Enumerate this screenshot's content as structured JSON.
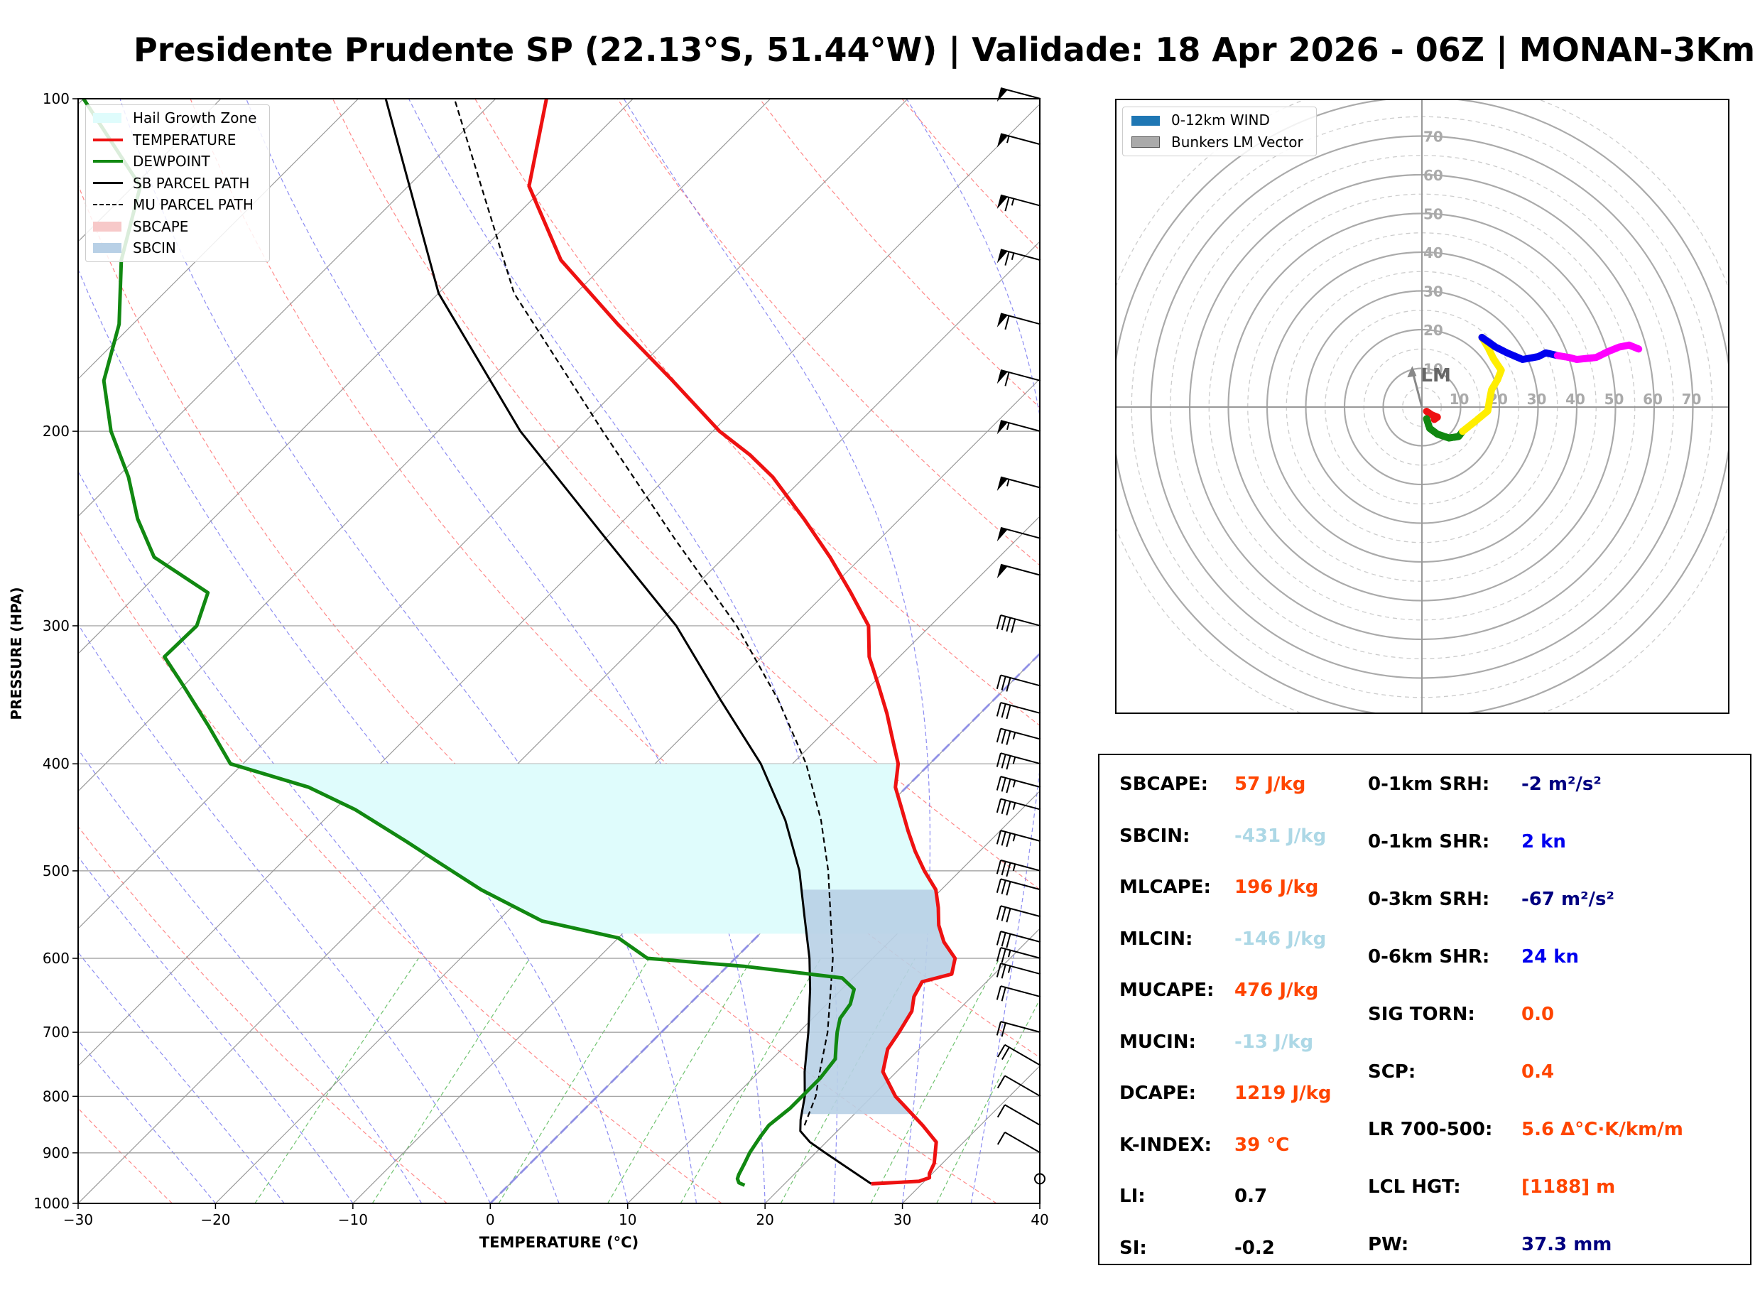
{
  "header": {
    "title": "Presidente Prudente SP (22.13°S, 51.44°W) | Validade: 18 Apr 2026 - 06Z | MONAN-3Km"
  },
  "colors": {
    "temperature": "#ee1111",
    "dewpoint": "#118811",
    "parcel": "#000000",
    "hail": "#dffcfc",
    "sbcin": "#b8d0e6",
    "sbcape": "#f7c9c9",
    "orange": "#ff4500",
    "lightblue": "#add8e6",
    "navy": "#000080",
    "blue": "#0000ee",
    "black": "#000000"
  },
  "chart_data": [
    {
      "type": "line",
      "name": "skew-t",
      "xlabel": "TEMPERATURE (°C)",
      "ylabel": "PRESSURE (HPA)",
      "xlim": [
        -30,
        40
      ],
      "ylim": [
        1000,
        100
      ],
      "skew_deg_per_decade": 45,
      "x_ticks": [
        -30,
        -20,
        -10,
        0,
        10,
        20,
        30,
        40
      ],
      "x_tick_labels": [
        "−30",
        "−20",
        "−10",
        "0",
        "10",
        "20",
        "30",
        "40"
      ],
      "p_ticks": [
        1000,
        900,
        800,
        700,
        600,
        500,
        400,
        300,
        200,
        100
      ],
      "legend": [
        {
          "label": "Hail Growth Zone",
          "kind": "patch",
          "color": "#dffcfc"
        },
        {
          "label": "TEMPERATURE",
          "kind": "line",
          "color": "#ee1111",
          "width": 4
        },
        {
          "label": "DEWPOINT",
          "kind": "line",
          "color": "#118811",
          "width": 4
        },
        {
          "label": "SB PARCEL PATH",
          "kind": "line",
          "color": "#000000",
          "width": 3
        },
        {
          "label": "MU PARCEL PATH",
          "kind": "dash",
          "color": "#000000",
          "width": 2
        },
        {
          "label": "SBCAPE",
          "kind": "patch",
          "color": "#f7c9c9"
        },
        {
          "label": "SBCIN",
          "kind": "patch",
          "color": "#b8d0e6"
        }
      ],
      "series": [
        {
          "name": "TEMPERATURE",
          "points": [
            [
              960,
              26.3
            ],
            [
              955,
              29.6
            ],
            [
              948,
              30.1
            ],
            [
              940,
              29.8
            ],
            [
              920,
              29.4
            ],
            [
              880,
              28.0
            ],
            [
              850,
              25.8
            ],
            [
              800,
              21.7
            ],
            [
              760,
              19.0
            ],
            [
              725,
              17.7
            ],
            [
              700,
              17.3
            ],
            [
              670,
              16.7
            ],
            [
              650,
              15.8
            ],
            [
              630,
              15.3
            ],
            [
              620,
              16.9
            ],
            [
              600,
              16.0
            ],
            [
              580,
              14.0
            ],
            [
              560,
              12.4
            ],
            [
              540,
              11.1
            ],
            [
              520,
              9.6
            ],
            [
              500,
              7.4
            ],
            [
              480,
              5.3
            ],
            [
              460,
              3.3
            ],
            [
              440,
              1.3
            ],
            [
              420,
              -0.8
            ],
            [
              400,
              -2.3
            ],
            [
              380,
              -4.5
            ],
            [
              360,
              -6.8
            ],
            [
              340,
              -9.4
            ],
            [
              320,
              -12.2
            ],
            [
              300,
              -14.5
            ],
            [
              280,
              -18.2
            ],
            [
              260,
              -22.3
            ],
            [
              240,
              -27.0
            ],
            [
              220,
              -32.3
            ],
            [
              210,
              -35.6
            ],
            [
              200,
              -39.5
            ],
            [
              180,
              -46.6
            ],
            [
              160,
              -54.7
            ],
            [
              140,
              -63.5
            ],
            [
              120,
              -71.2
            ],
            [
              100,
              -76.3
            ]
          ]
        },
        {
          "name": "DEWPOINT",
          "points": [
            [
              963,
              17.2
            ],
            [
              958,
              16.6
            ],
            [
              950,
              16.2
            ],
            [
              942,
              16.0
            ],
            [
              920,
              15.6
            ],
            [
              900,
              15.2
            ],
            [
              870,
              14.8
            ],
            [
              850,
              14.6
            ],
            [
              820,
              14.9
            ],
            [
              800,
              14.9
            ],
            [
              770,
              14.9
            ],
            [
              740,
              14.6
            ],
            [
              720,
              13.7
            ],
            [
              700,
              12.8
            ],
            [
              680,
              12.0
            ],
            [
              660,
              11.7
            ],
            [
              640,
              10.9
            ],
            [
              625,
              9.2
            ],
            [
              610,
              1.2
            ],
            [
              600,
              -6.4
            ],
            [
              575,
              -10.0
            ],
            [
              555,
              -16.8
            ],
            [
              520,
              -23.5
            ],
            [
              490,
              -28.8
            ],
            [
              470,
              -32.5
            ],
            [
              440,
              -38.5
            ],
            [
              420,
              -43.5
            ],
            [
              400,
              -50.9
            ],
            [
              370,
              -55.2
            ],
            [
              340,
              -60.0
            ],
            [
              320,
              -63.5
            ],
            [
              300,
              -63.4
            ],
            [
              280,
              -65.0
            ],
            [
              260,
              -71.5
            ],
            [
              240,
              -75.5
            ],
            [
              220,
              -79.2
            ],
            [
              200,
              -83.8
            ],
            [
              180,
              -88.0
            ],
            [
              160,
              -91.0
            ],
            [
              140,
              -95.5
            ],
            [
              120,
              -99.5
            ],
            [
              100,
              -110
            ]
          ]
        },
        {
          "name": "SB PARCEL PATH",
          "points": [
            [
              960,
              26.3
            ],
            [
              900,
              20.7
            ],
            [
              880,
              18.8
            ],
            [
              860,
              17.3
            ],
            [
              840,
              16.5
            ],
            [
              800,
              15.1
            ],
            [
              760,
              13.3
            ],
            [
              700,
              10.7
            ],
            [
              640,
              7.7
            ],
            [
              600,
              5.4
            ],
            [
              550,
              2.0
            ],
            [
              500,
              -1.7
            ],
            [
              450,
              -6.4
            ],
            [
              400,
              -12.3
            ],
            [
              350,
              -19.9
            ],
            [
              300,
              -28.5
            ],
            [
              250,
              -40.0
            ],
            [
              200,
              -54.0
            ],
            [
              150,
              -70.0
            ],
            [
              100,
              -88.0
            ]
          ]
        },
        {
          "name": "MU PARCEL PATH",
          "points": [
            [
              850,
              17.2
            ],
            [
              800,
              15.9
            ],
            [
              760,
              14.4
            ],
            [
              700,
              12.1
            ],
            [
              640,
              9.2
            ],
            [
              600,
              7.1
            ],
            [
              550,
              3.9
            ],
            [
              500,
              0.4
            ],
            [
              450,
              -3.8
            ],
            [
              400,
              -9.0
            ],
            [
              350,
              -15.7
            ],
            [
              300,
              -24.1
            ],
            [
              250,
              -35.0
            ],
            [
              200,
              -48.0
            ],
            [
              150,
              -64.5
            ],
            [
              100,
              -83.0
            ]
          ]
        }
      ],
      "hail_growth_zone": {
        "p_bottom": 570,
        "p_top": 400
      },
      "sbcin_fill": [
        {
          "p_bottom": 830,
          "p_top": 520
        }
      ],
      "wind_barbs_kn": [
        [
          950,
          0
        ],
        [
          900,
          10
        ],
        [
          850,
          10
        ],
        [
          800,
          10
        ],
        [
          750,
          20
        ],
        [
          700,
          20
        ],
        [
          650,
          20
        ],
        [
          620,
          25
        ],
        [
          600,
          25
        ],
        [
          580,
          30
        ],
        [
          550,
          30
        ],
        [
          520,
          30
        ],
        [
          500,
          35
        ],
        [
          470,
          35
        ],
        [
          440,
          35
        ],
        [
          420,
          35
        ],
        [
          400,
          35
        ],
        [
          380,
          35
        ],
        [
          360,
          30
        ],
        [
          340,
          30
        ],
        [
          300,
          40
        ],
        [
          270,
          50
        ],
        [
          250,
          50
        ],
        [
          225,
          55
        ],
        [
          200,
          55
        ],
        [
          180,
          60
        ],
        [
          160,
          60
        ],
        [
          140,
          65
        ],
        [
          125,
          65
        ],
        [
          110,
          55
        ],
        [
          100,
          50
        ]
      ]
    },
    {
      "type": "scatter",
      "name": "hodograph",
      "rings": [
        10,
        20,
        30,
        40,
        50,
        60,
        70
      ],
      "ring_labels": [
        "10",
        "20",
        "30",
        "40",
        "50",
        "60",
        "70"
      ],
      "legend": [
        {
          "label": "0-12km WIND",
          "color": "#1f77b4"
        },
        {
          "label": "Bunkers LM Vector",
          "color": "#aaaaaa"
        }
      ],
      "lm_label": "LM",
      "lm_vector": [
        -2.5,
        9.5
      ],
      "segments": [
        {
          "color": "#ee1111",
          "points": [
            [
              1.2,
              -1.1
            ],
            [
              2.5,
              -2.0
            ],
            [
              4.0,
              -2.6
            ],
            [
              3.2,
              -3.2
            ]
          ]
        },
        {
          "color": "#118811",
          "points": [
            [
              1.2,
              -3.0
            ],
            [
              2.0,
              -5.5
            ],
            [
              4.0,
              -7.0
            ],
            [
              7.0,
              -8.0
            ],
            [
              9.5,
              -7.6
            ],
            [
              10.5,
              -6.3
            ]
          ]
        },
        {
          "color": "#ffee00",
          "points": [
            [
              10.5,
              -6.3
            ],
            [
              14.0,
              -3.5
            ],
            [
              17.0,
              -1.0
            ],
            [
              17.5,
              2.0
            ],
            [
              18.0,
              4.5
            ],
            [
              19.5,
              7.0
            ],
            [
              20.5,
              9.5
            ],
            [
              18.5,
              12.5
            ],
            [
              17.0,
              15.5
            ],
            [
              15.5,
              18.0
            ]
          ]
        },
        {
          "color": "#0000ee",
          "points": [
            [
              15.5,
              18.0
            ],
            [
              19.0,
              15.5
            ],
            [
              22.0,
              14.0
            ],
            [
              26.0,
              12.3
            ],
            [
              30.0,
              13.0
            ],
            [
              32.0,
              14.0
            ],
            [
              35.0,
              13.3
            ]
          ]
        },
        {
          "color": "#ff00ff",
          "points": [
            [
              35.0,
              13.3
            ],
            [
              38.0,
              12.8
            ],
            [
              40.0,
              12.3
            ],
            [
              45.0,
              12.8
            ],
            [
              48.0,
              14.3
            ],
            [
              51.0,
              15.5
            ],
            [
              53.5,
              16.0
            ],
            [
              56.0,
              15.0
            ]
          ]
        }
      ]
    }
  ],
  "indices": {
    "col1": [
      {
        "label": "SBCAPE:",
        "value": "57 J/kg",
        "color": "#ff4500"
      },
      {
        "label": "SBCIN:",
        "value": "-431 J/kg",
        "color": "#add8e6"
      },
      {
        "label": "MLCAPE:",
        "value": "196 J/kg",
        "color": "#ff4500"
      },
      {
        "label": "MLCIN:",
        "value": "-146 J/kg",
        "color": "#add8e6"
      },
      {
        "label": "MUCAPE:",
        "value": "476 J/kg",
        "color": "#ff4500"
      },
      {
        "label": "MUCIN:",
        "value": "-13 J/kg",
        "color": "#add8e6"
      },
      {
        "label": "DCAPE:",
        "value": "1219 J/kg",
        "color": "#ff4500"
      },
      {
        "label": "K-INDEX:",
        "value": "39 °C",
        "color": "#ff4500"
      },
      {
        "label": "LI:",
        "value": "0.7",
        "color": "#000000"
      },
      {
        "label": "SI:",
        "value": "-0.2",
        "color": "#000000"
      }
    ],
    "col2": [
      {
        "label": "0-1km SRH:",
        "value": "-2 m²/s²",
        "color": "#000080"
      },
      {
        "label": "0-1km SHR:",
        "value": "2 kn",
        "color": "#0000ee"
      },
      {
        "label": "0-3km SRH:",
        "value": "-67 m²/s²",
        "color": "#000080"
      },
      {
        "label": "0-6km SHR:",
        "value": "24 kn",
        "color": "#0000ee"
      },
      {
        "label": "SIG TORN:",
        "value": "0.0",
        "color": "#ff4500"
      },
      {
        "label": "SCP:",
        "value": "0.4",
        "color": "#ff4500"
      },
      {
        "label": "LR 700-500:",
        "value": "5.6 Δ°C·K/km/m",
        "color": "#ff4500"
      },
      {
        "label": "LCL HGT:",
        "value": "[1188] m",
        "color": "#ff4500"
      },
      {
        "label": "PW:",
        "value": "37.3 mm",
        "color": "#000080"
      }
    ]
  }
}
